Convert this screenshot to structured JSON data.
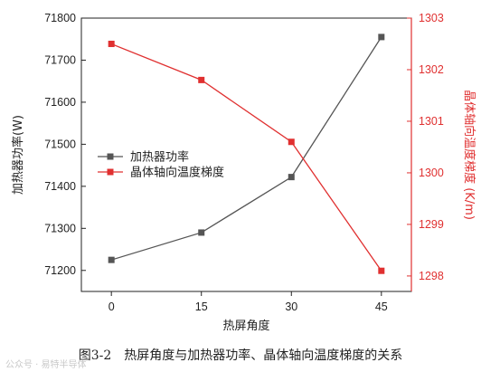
{
  "chart_data": {
    "type": "line",
    "x": [
      0,
      15,
      30,
      45
    ],
    "xlabel": "热屏角度",
    "xticks": [
      "0",
      "15",
      "30",
      "45"
    ],
    "xlim": [
      -5,
      50
    ],
    "y_left": {
      "label": "加热器功率(W)",
      "lim": [
        71150,
        71800
      ],
      "ticks": [
        71200,
        71300,
        71400,
        71500,
        71600,
        71700,
        71800
      ],
      "color": "#222222"
    },
    "y_right": {
      "label": "晶体轴向温度梯度 (K/m)",
      "lim": [
        1297.7,
        1303
      ],
      "ticks": [
        1298,
        1299,
        1300,
        1301,
        1302,
        1303
      ],
      "color": "#e03030"
    },
    "series": [
      {
        "name": "加热器功率",
        "axis": "left",
        "color": "#555555",
        "marker": "square",
        "values": [
          71225,
          71290,
          71422,
          71755
        ]
      },
      {
        "name": "晶体轴向温度梯度",
        "axis": "right",
        "color": "#e03030",
        "marker": "square",
        "values": [
          1302.5,
          1301.8,
          1300.6,
          1298.1
        ]
      }
    ],
    "legend_position": "middle-left",
    "grid": false
  },
  "caption": {
    "number": "图3-2",
    "text": "热屏角度与加热器功率、晶体轴向温度梯度的关系"
  },
  "watermark": "公众号 · 易特半导体"
}
